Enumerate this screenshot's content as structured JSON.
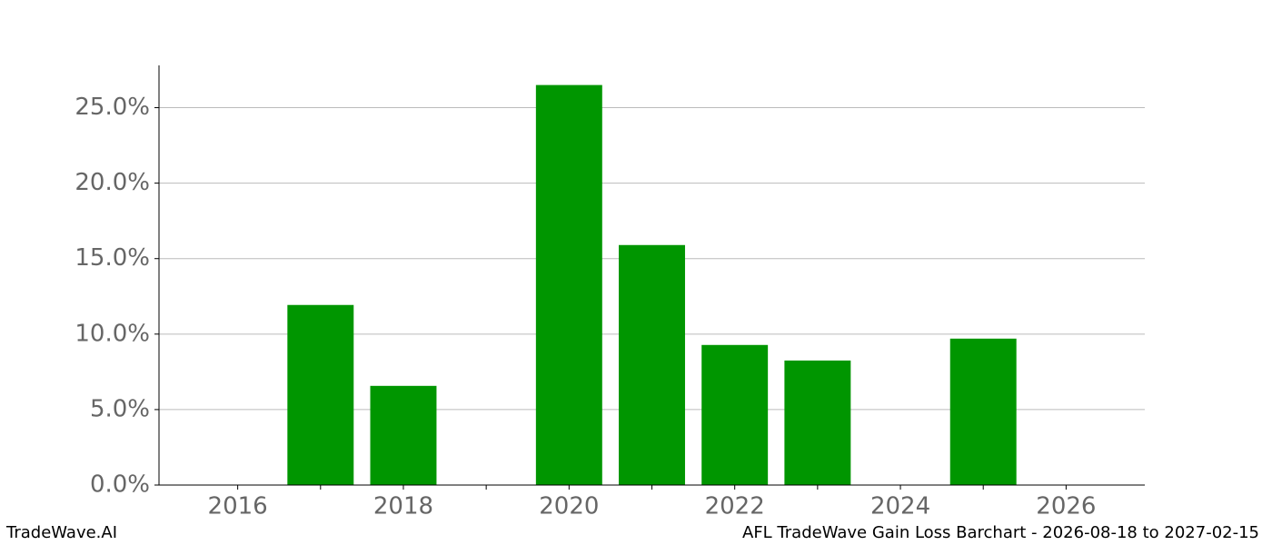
{
  "chart_data": {
    "type": "bar",
    "x": [
      2017,
      2018,
      2020,
      2021,
      2022,
      2023,
      2025
    ],
    "values": [
      11.93,
      6.57,
      26.5,
      15.9,
      9.28,
      8.25,
      9.7
    ],
    "color": "#009600",
    "bar_width": 0.8,
    "xlim": [
      2015.05,
      2026.95
    ],
    "xticks": [
      2016,
      {
        "value": 2017,
        "label": null
      },
      2018,
      {
        "value": 2019,
        "label": null
      },
      2020,
      {
        "value": 2021,
        "label": null
      },
      2022,
      {
        "value": 2023,
        "label": null
      },
      2024,
      {
        "value": 2025,
        "label": null
      },
      2026
    ],
    "ylim": [
      0,
      27.8
    ],
    "yticks": [
      {
        "value": 0,
        "label": "0.0%"
      },
      {
        "value": 5,
        "label": "5.0%"
      },
      {
        "value": 10,
        "label": "10.0%"
      },
      {
        "value": 15,
        "label": "15.0%"
      },
      {
        "value": 20,
        "label": "20.0%"
      },
      {
        "value": 25,
        "label": "25.0%"
      }
    ],
    "grid": true,
    "footer_left": "TradeWave.AI",
    "footer_right": "AFL TradeWave Gain Loss Barchart - 2026-08-18 to 2027-02-15"
  }
}
